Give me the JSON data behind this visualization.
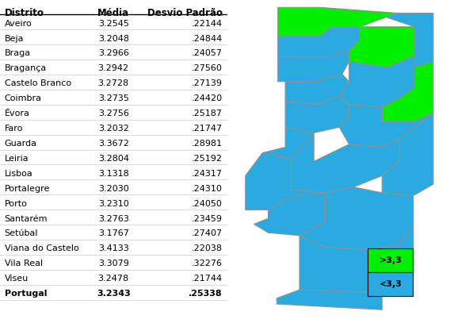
{
  "districts": [
    "Aveiro",
    "Beja",
    "Braga",
    "Bragança",
    "Castelo Branco",
    "Coimbra",
    "Évora",
    "Faro",
    "Guarda",
    "Leiria",
    "Lisboa",
    "Portalegre",
    "Porto",
    "Santarém",
    "Setúbal",
    "Viana do Castelo",
    "Vila Real",
    "Viseu",
    "Portugal"
  ],
  "media": [
    "3.2545",
    "3.2048",
    "3.2966",
    "3.2942",
    "3.2728",
    "3.2735",
    "3.2756",
    "3.2032",
    "3.3672",
    "3.2804",
    "3.1318",
    "3.2030",
    "3.2310",
    "3.2763",
    "3.1767",
    "3.4133",
    "3.3079",
    "3.2478",
    "3.2343"
  ],
  "desvio": [
    ".22144",
    ".24844",
    ".24057",
    ".27560",
    ".27139",
    ".24420",
    ".25187",
    ".21747",
    ".28981",
    ".25192",
    ".24317",
    ".24310",
    ".24050",
    ".23459",
    ".27407",
    ".22038",
    ".32276",
    ".21744",
    ".25338"
  ],
  "header": [
    "Distrito",
    "Média",
    "Desvio Padrão"
  ],
  "green_color": "#00EE00",
  "blue_color": "#29ABE2",
  "border_color": "#909090",
  "legend_green_label": ">3,3",
  "legend_blue_label": "<3,3",
  "font_size_table": 8.0,
  "font_size_header": 8.5,
  "green_districts": [
    "Guarda",
    "Viana do Castelo",
    "Vila Real"
  ]
}
